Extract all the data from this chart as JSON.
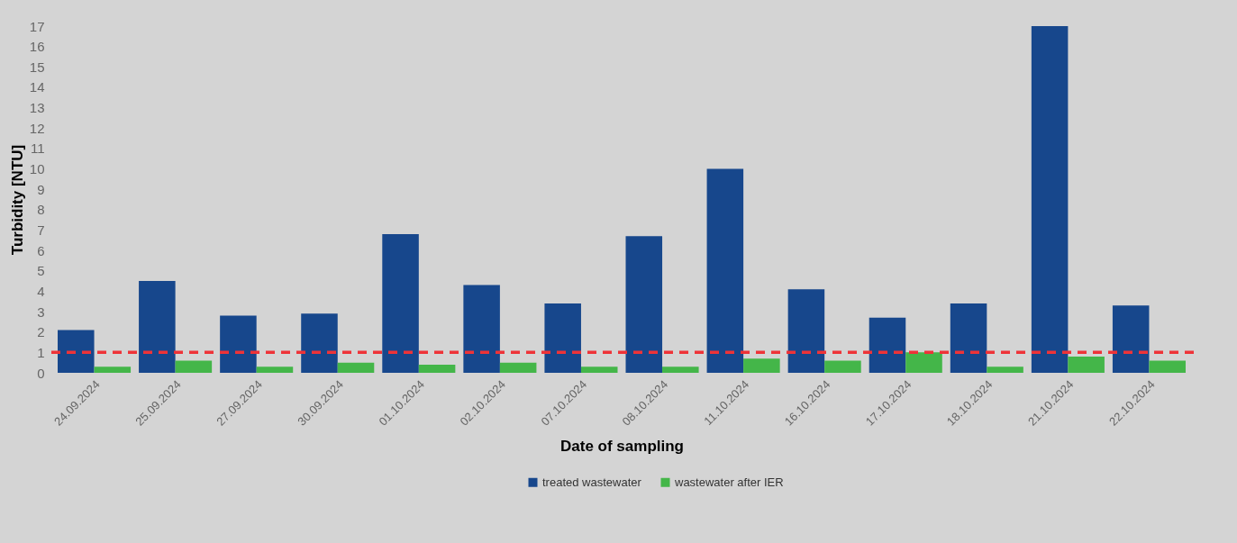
{
  "chart_data": {
    "type": "bar",
    "xlabel": "Date of sampling",
    "ylabel": "Turbidity [NTU]",
    "categories": [
      "24.09.2024",
      "25.09.2024",
      "27.09.2024",
      "30.09.2024",
      "01.10.2024",
      "02.10.2024",
      "07.10.2024",
      "08.10.2024",
      "11.10.2024",
      "16.10.2024",
      "17.10.2024",
      "18.10.2024",
      "21.10.2024",
      "22.10.2024"
    ],
    "series": [
      {
        "name": "treated wastewater",
        "color": "#17478c",
        "values": [
          2.1,
          4.5,
          2.8,
          2.9,
          6.8,
          4.3,
          3.4,
          6.7,
          10.0,
          4.1,
          2.7,
          3.4,
          17.0,
          3.3
        ]
      },
      {
        "name": "wastewater after IER",
        "color": "#44b649",
        "values": [
          0.3,
          0.6,
          0.3,
          0.5,
          0.4,
          0.5,
          0.3,
          0.3,
          0.7,
          0.6,
          1.0,
          0.3,
          0.8,
          0.6
        ]
      }
    ],
    "ylim": [
      0,
      17
    ],
    "yticks": [
      0,
      1,
      2,
      3,
      4,
      5,
      6,
      7,
      8,
      9,
      10,
      11,
      12,
      13,
      14,
      15,
      16,
      17
    ],
    "ref_lines": [
      {
        "axis": "y",
        "value": 1,
        "color": "#ee3338",
        "line_style": "dashed"
      }
    ],
    "grid": false,
    "legend": "bottom"
  }
}
